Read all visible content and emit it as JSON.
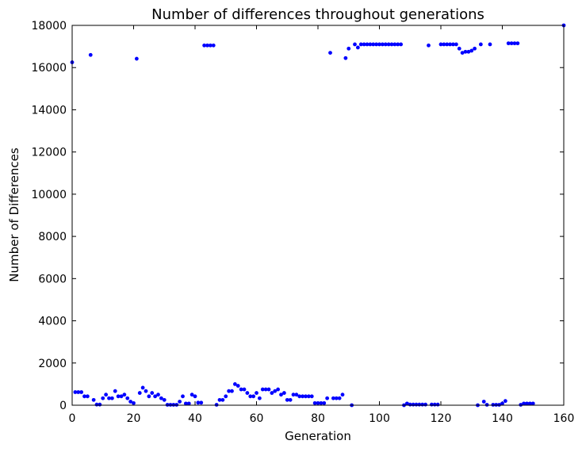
{
  "chart_data": {
    "type": "scatter",
    "title": "Number of differences throughout generations",
    "xlabel": "Generation",
    "ylabel": "Number of Differences",
    "xlim": [
      0,
      160
    ],
    "ylim": [
      0,
      18000
    ],
    "xticks": [
      0,
      20,
      40,
      60,
      80,
      100,
      120,
      140,
      160
    ],
    "yticks": [
      0,
      2000,
      4000,
      6000,
      8000,
      10000,
      12000,
      14000,
      16000,
      18000
    ],
    "grid": false,
    "marker_color": "#0000ff",
    "series": [
      {
        "points": [
          [
            0,
            16250
          ],
          [
            1,
            620
          ],
          [
            2,
            620
          ],
          [
            3,
            620
          ],
          [
            4,
            420
          ],
          [
            5,
            420
          ],
          [
            6,
            16600
          ],
          [
            7,
            250
          ],
          [
            8,
            30
          ],
          [
            9,
            30
          ],
          [
            10,
            330
          ],
          [
            11,
            500
          ],
          [
            12,
            330
          ],
          [
            13,
            330
          ],
          [
            14,
            670
          ],
          [
            15,
            420
          ],
          [
            16,
            420
          ],
          [
            17,
            500
          ],
          [
            18,
            330
          ],
          [
            19,
            170
          ],
          [
            20,
            100
          ],
          [
            21,
            16420
          ],
          [
            22,
            580
          ],
          [
            23,
            830
          ],
          [
            24,
            670
          ],
          [
            25,
            420
          ],
          [
            26,
            580
          ],
          [
            27,
            420
          ],
          [
            28,
            500
          ],
          [
            29,
            330
          ],
          [
            30,
            250
          ],
          [
            31,
            20
          ],
          [
            32,
            20
          ],
          [
            33,
            20
          ],
          [
            34,
            20
          ],
          [
            35,
            170
          ],
          [
            36,
            420
          ],
          [
            37,
            80
          ],
          [
            38,
            80
          ],
          [
            39,
            500
          ],
          [
            40,
            420
          ],
          [
            41,
            120
          ],
          [
            42,
            120
          ],
          [
            43,
            17050
          ],
          [
            44,
            17050
          ],
          [
            45,
            17050
          ],
          [
            46,
            17050
          ],
          [
            47,
            20
          ],
          [
            48,
            250
          ],
          [
            49,
            250
          ],
          [
            50,
            420
          ],
          [
            51,
            670
          ],
          [
            52,
            670
          ],
          [
            53,
            1000
          ],
          [
            54,
            920
          ],
          [
            55,
            750
          ],
          [
            56,
            750
          ],
          [
            57,
            580
          ],
          [
            58,
            420
          ],
          [
            59,
            420
          ],
          [
            60,
            580
          ],
          [
            61,
            330
          ],
          [
            62,
            750
          ],
          [
            63,
            750
          ],
          [
            64,
            750
          ],
          [
            65,
            580
          ],
          [
            66,
            670
          ],
          [
            67,
            750
          ],
          [
            68,
            500
          ],
          [
            69,
            580
          ],
          [
            70,
            250
          ],
          [
            71,
            250
          ],
          [
            72,
            500
          ],
          [
            73,
            500
          ],
          [
            74,
            420
          ],
          [
            75,
            420
          ],
          [
            76,
            420
          ],
          [
            77,
            420
          ],
          [
            78,
            420
          ],
          [
            79,
            100
          ],
          [
            80,
            100
          ],
          [
            81,
            100
          ],
          [
            82,
            100
          ],
          [
            83,
            330
          ],
          [
            84,
            16700
          ],
          [
            85,
            330
          ],
          [
            86,
            330
          ],
          [
            87,
            330
          ],
          [
            88,
            500
          ],
          [
            89,
            16450
          ],
          [
            90,
            16900
          ],
          [
            91,
            0
          ],
          [
            92,
            17100
          ],
          [
            93,
            16950
          ],
          [
            94,
            17100
          ],
          [
            95,
            17100
          ],
          [
            96,
            17100
          ],
          [
            97,
            17100
          ],
          [
            98,
            17100
          ],
          [
            99,
            17100
          ],
          [
            100,
            17100
          ],
          [
            101,
            17100
          ],
          [
            102,
            17100
          ],
          [
            103,
            17100
          ],
          [
            104,
            17100
          ],
          [
            105,
            17100
          ],
          [
            106,
            17100
          ],
          [
            107,
            17100
          ],
          [
            108,
            0
          ],
          [
            109,
            80
          ],
          [
            110,
            30
          ],
          [
            111,
            30
          ],
          [
            112,
            30
          ],
          [
            113,
            30
          ],
          [
            114,
            30
          ],
          [
            115,
            30
          ],
          [
            116,
            17050
          ],
          [
            117,
            30
          ],
          [
            118,
            30
          ],
          [
            119,
            30
          ],
          [
            120,
            17100
          ],
          [
            121,
            17100
          ],
          [
            122,
            17100
          ],
          [
            123,
            17100
          ],
          [
            124,
            17100
          ],
          [
            125,
            17100
          ],
          [
            126,
            16900
          ],
          [
            127,
            16700
          ],
          [
            128,
            16750
          ],
          [
            129,
            16750
          ],
          [
            130,
            16800
          ],
          [
            131,
            16900
          ],
          [
            132,
            0
          ],
          [
            133,
            17100
          ],
          [
            134,
            170
          ],
          [
            135,
            20
          ],
          [
            136,
            17100
          ],
          [
            137,
            20
          ],
          [
            138,
            20
          ],
          [
            139,
            20
          ],
          [
            140,
            80
          ],
          [
            141,
            200
          ],
          [
            142,
            17150
          ],
          [
            143,
            17150
          ],
          [
            144,
            17150
          ],
          [
            145,
            17150
          ],
          [
            146,
            20
          ],
          [
            147,
            80
          ],
          [
            148,
            80
          ],
          [
            149,
            80
          ],
          [
            150,
            80
          ],
          [
            160,
            18000
          ]
        ]
      }
    ]
  }
}
